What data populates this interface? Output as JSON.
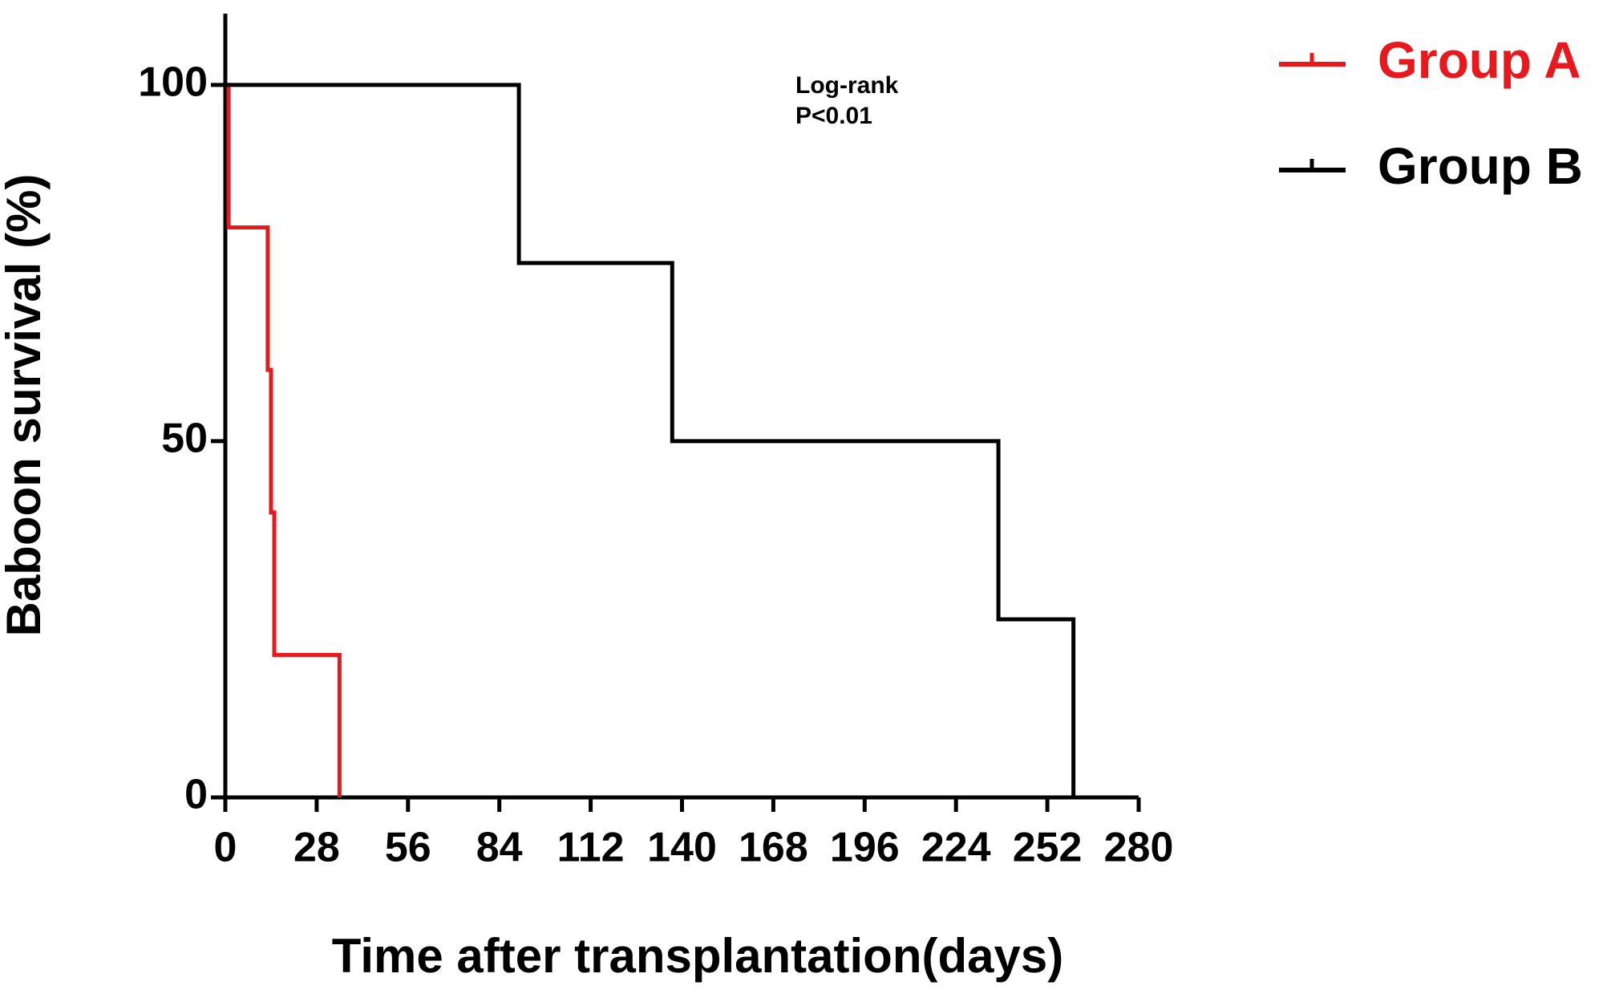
{
  "chart_data": {
    "type": "step",
    "x_label": "Time after transplantation(days)",
    "y_label": "Baboon survival (%)",
    "annotation": [
      "Log-rank",
      "P<0.01"
    ],
    "xlim": [
      0,
      280
    ],
    "xticks": [
      0,
      28,
      56,
      84,
      112,
      140,
      168,
      196,
      224,
      252,
      280
    ],
    "ylim": [
      0,
      110
    ],
    "yticks": [
      0,
      50,
      100
    ],
    "legend": "top-right",
    "series": [
      {
        "name": "Group A",
        "color": "#e8191c",
        "x": [
          0,
          1,
          13,
          14,
          15,
          35
        ],
        "values": [
          100,
          80,
          60,
          40,
          20,
          0
        ]
      },
      {
        "name": "Group B",
        "color": "#000000",
        "x": [
          0,
          90,
          137,
          237,
          260
        ],
        "values": [
          100,
          75,
          50,
          25,
          0
        ]
      }
    ]
  }
}
